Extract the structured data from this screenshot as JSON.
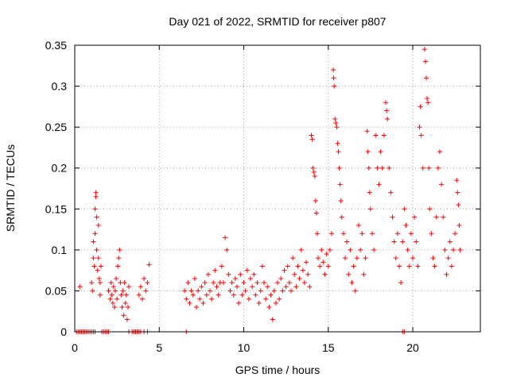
{
  "chart_data": {
    "type": "scatter",
    "title": "Day 021 of 2022, SRMTID for receiver p807",
    "xlabel": "GPS time / hours",
    "ylabel": "SRMTID / TECUs",
    "xlim": [
      0,
      24
    ],
    "ylim": [
      0,
      0.35
    ],
    "xticks": [
      "0",
      "5",
      "10",
      "15",
      "20"
    ],
    "yticks": [
      "0",
      "0.05",
      "0.1",
      "0.15",
      "0.2",
      "0.25",
      "0.3",
      "0.35"
    ],
    "grid": true,
    "marker": "+",
    "series_color": "#ff0000",
    "series": [
      {
        "name": "SRMTID",
        "points": [
          [
            0.1,
            0
          ],
          [
            0.2,
            0
          ],
          [
            0.3,
            0
          ],
          [
            0.4,
            0
          ],
          [
            0.5,
            0
          ],
          [
            0.6,
            0
          ],
          [
            0.7,
            0
          ],
          [
            0.8,
            0
          ],
          [
            0.9,
            0
          ],
          [
            1.0,
            0
          ],
          [
            1.1,
            0
          ],
          [
            1.2,
            0
          ],
          [
            1.6,
            0
          ],
          [
            1.7,
            0
          ],
          [
            1.8,
            0
          ],
          [
            1.9,
            0
          ],
          [
            2.0,
            0
          ],
          [
            3.2,
            0
          ],
          [
            3.4,
            0
          ],
          [
            3.5,
            0
          ],
          [
            3.6,
            0
          ],
          [
            3.7,
            0
          ],
          [
            3.8,
            0
          ],
          [
            3.9,
            0
          ],
          [
            4.1,
            0
          ],
          [
            4.3,
            0
          ],
          [
            6.6,
            0
          ],
          [
            19.4,
            0
          ],
          [
            19.5,
            0
          ],
          [
            0.3,
            0.055
          ],
          [
            1.0,
            0.06
          ],
          [
            1.05,
            0.05
          ],
          [
            1.1,
            0.09
          ],
          [
            1.1,
            0.11
          ],
          [
            1.15,
            0.08
          ],
          [
            1.2,
            0.12
          ],
          [
            1.2,
            0.15
          ],
          [
            1.25,
            0.17
          ],
          [
            1.25,
            0.165
          ],
          [
            1.3,
            0.14
          ],
          [
            1.3,
            0.1
          ],
          [
            1.35,
            0.075
          ],
          [
            1.4,
            0.13
          ],
          [
            1.4,
            0.09
          ],
          [
            1.45,
            0.065
          ],
          [
            1.5,
            0.06
          ],
          [
            1.5,
            0.045
          ],
          [
            1.55,
            0.08
          ],
          [
            2.0,
            0.05
          ],
          [
            2.1,
            0.04
          ],
          [
            2.15,
            0.06
          ],
          [
            2.2,
            0.045
          ],
          [
            2.25,
            0.035
          ],
          [
            2.3,
            0.055
          ],
          [
            2.35,
            0.03
          ],
          [
            2.4,
            0.05
          ],
          [
            2.45,
            0.065
          ],
          [
            2.5,
            0.04
          ],
          [
            2.55,
            0.08
          ],
          [
            2.6,
            0.09
          ],
          [
            2.65,
            0.1
          ],
          [
            2.7,
            0.06
          ],
          [
            2.75,
            0.045
          ],
          [
            2.8,
            0.03
          ],
          [
            2.85,
            0.05
          ],
          [
            2.9,
            0.02
          ],
          [
            2.95,
            0.06
          ],
          [
            3.0,
            0.035
          ],
          [
            3.05,
            0.045
          ],
          [
            3.1,
            0.015
          ],
          [
            3.15,
            0.03
          ],
          [
            3.2,
            0.055
          ],
          [
            3.8,
            0.045
          ],
          [
            3.9,
            0.055
          ],
          [
            4.0,
            0.04
          ],
          [
            4.1,
            0.065
          ],
          [
            4.2,
            0.05
          ],
          [
            4.3,
            0.06
          ],
          [
            4.4,
            0.082
          ],
          [
            6.5,
            0.05
          ],
          [
            6.6,
            0.04
          ],
          [
            6.7,
            0.06
          ],
          [
            6.8,
            0.035
          ],
          [
            6.9,
            0.05
          ],
          [
            7.0,
            0.045
          ],
          [
            7.1,
            0.065
          ],
          [
            7.2,
            0.03
          ],
          [
            7.3,
            0.05
          ],
          [
            7.4,
            0.04
          ],
          [
            7.5,
            0.055
          ],
          [
            7.6,
            0.035
          ],
          [
            7.7,
            0.06
          ],
          [
            7.8,
            0.045
          ],
          [
            7.9,
            0.07
          ],
          [
            8.0,
            0.05
          ],
          [
            8.1,
            0.04
          ],
          [
            8.2,
            0.06
          ],
          [
            8.3,
            0.075
          ],
          [
            8.4,
            0.055
          ],
          [
            8.5,
            0.045
          ],
          [
            8.6,
            0.06
          ],
          [
            8.7,
            0.08
          ],
          [
            8.8,
            0.06
          ],
          [
            8.9,
            0.115
          ],
          [
            9.0,
            0.1
          ],
          [
            9.1,
            0.07
          ],
          [
            9.2,
            0.05
          ],
          [
            9.3,
            0.06
          ],
          [
            9.4,
            0.045
          ],
          [
            9.5,
            0.065
          ],
          [
            9.6,
            0.055
          ],
          [
            9.7,
            0.035
          ],
          [
            9.8,
            0.07
          ],
          [
            9.9,
            0.045
          ],
          [
            10.0,
            0.06
          ],
          [
            10.1,
            0.05
          ],
          [
            10.2,
            0.075
          ],
          [
            10.3,
            0.04
          ],
          [
            10.4,
            0.065
          ],
          [
            10.5,
            0.055
          ],
          [
            10.6,
            0.07
          ],
          [
            10.7,
            0.045
          ],
          [
            10.8,
            0.06
          ],
          [
            10.9,
            0.035
          ],
          [
            11.0,
            0.05
          ],
          [
            11.1,
            0.08
          ],
          [
            11.2,
            0.06
          ],
          [
            11.3,
            0.04
          ],
          [
            11.4,
            0.055
          ],
          [
            11.5,
            0.03
          ],
          [
            11.6,
            0.045
          ],
          [
            11.7,
            0.015
          ],
          [
            11.8,
            0.05
          ],
          [
            11.9,
            0.035
          ],
          [
            12.0,
            0.06
          ],
          [
            12.1,
            0.04
          ],
          [
            12.2,
            0.065
          ],
          [
            12.3,
            0.05
          ],
          [
            12.4,
            0.075
          ],
          [
            12.5,
            0.055
          ],
          [
            12.6,
            0.08
          ],
          [
            12.7,
            0.06
          ],
          [
            12.8,
            0.05
          ],
          [
            12.9,
            0.09
          ],
          [
            13.0,
            0.07
          ],
          [
            13.1,
            0.055
          ],
          [
            13.2,
            0.08
          ],
          [
            13.3,
            0.065
          ],
          [
            13.4,
            0.1
          ],
          [
            13.5,
            0.075
          ],
          [
            13.6,
            0.06
          ],
          [
            13.7,
            0.085
          ],
          [
            13.8,
            0.07
          ],
          [
            13.9,
            0.055
          ],
          [
            14.0,
            0.24
          ],
          [
            14.05,
            0.235
          ],
          [
            14.1,
            0.2
          ],
          [
            14.15,
            0.195
          ],
          [
            14.2,
            0.19
          ],
          [
            14.25,
            0.16
          ],
          [
            14.3,
            0.145
          ],
          [
            14.35,
            0.12
          ],
          [
            14.4,
            0.09
          ],
          [
            14.5,
            0.08
          ],
          [
            14.6,
            0.1
          ],
          [
            14.7,
            0.085
          ],
          [
            14.8,
            0.07
          ],
          [
            14.9,
            0.095
          ],
          [
            15.0,
            0.08
          ],
          [
            15.1,
            0.1
          ],
          [
            15.2,
            0.12
          ],
          [
            15.3,
            0.32
          ],
          [
            15.32,
            0.31
          ],
          [
            15.35,
            0.3
          ],
          [
            15.4,
            0.26
          ],
          [
            15.45,
            0.255
          ],
          [
            15.5,
            0.25
          ],
          [
            15.55,
            0.23
          ],
          [
            15.6,
            0.22
          ],
          [
            15.65,
            0.2
          ],
          [
            15.7,
            0.18
          ],
          [
            15.75,
            0.16
          ],
          [
            15.8,
            0.14
          ],
          [
            15.9,
            0.12
          ],
          [
            16.0,
            0.09
          ],
          [
            16.1,
            0.11
          ],
          [
            16.2,
            0.07
          ],
          [
            16.3,
            0.1
          ],
          [
            16.4,
            0.06
          ],
          [
            16.5,
            0.08
          ],
          [
            16.6,
            0.05
          ],
          [
            16.7,
            0.09
          ],
          [
            16.8,
            0.13
          ],
          [
            16.9,
            0.1
          ],
          [
            17.0,
            0.12
          ],
          [
            17.1,
            0.07
          ],
          [
            17.2,
            0.09
          ],
          [
            17.3,
            0.245
          ],
          [
            17.35,
            0.22
          ],
          [
            17.4,
            0.2
          ],
          [
            17.45,
            0.17
          ],
          [
            17.5,
            0.15
          ],
          [
            17.6,
            0.12
          ],
          [
            17.7,
            0.1
          ],
          [
            17.8,
            0.24
          ],
          [
            17.9,
            0.2
          ],
          [
            18.0,
            0.18
          ],
          [
            18.1,
            0.22
          ],
          [
            18.2,
            0.2
          ],
          [
            18.3,
            0.24
          ],
          [
            18.4,
            0.28
          ],
          [
            18.45,
            0.27
          ],
          [
            18.5,
            0.26
          ],
          [
            18.6,
            0.2
          ],
          [
            18.7,
            0.17
          ],
          [
            18.8,
            0.14
          ],
          [
            18.9,
            0.11
          ],
          [
            19.0,
            0.09
          ],
          [
            19.1,
            0.12
          ],
          [
            19.2,
            0.08
          ],
          [
            19.3,
            0.06
          ],
          [
            19.4,
            0.11
          ],
          [
            19.5,
            0.15
          ],
          [
            19.6,
            0.13
          ],
          [
            19.7,
            0.1
          ],
          [
            19.8,
            0.08
          ],
          [
            19.9,
            0.12
          ],
          [
            20.0,
            0.09
          ],
          [
            20.1,
            0.14
          ],
          [
            20.2,
            0.11
          ],
          [
            20.3,
            0.08
          ],
          [
            20.4,
            0.25
          ],
          [
            20.45,
            0.275
          ],
          [
            20.5,
            0.24
          ],
          [
            20.6,
            0.2
          ],
          [
            20.7,
            0.345
          ],
          [
            20.75,
            0.33
          ],
          [
            20.8,
            0.31
          ],
          [
            20.85,
            0.285
          ],
          [
            20.9,
            0.28
          ],
          [
            20.95,
            0.2
          ],
          [
            21.0,
            0.15
          ],
          [
            21.1,
            0.12
          ],
          [
            21.2,
            0.09
          ],
          [
            21.3,
            0.08
          ],
          [
            21.4,
            0.14
          ],
          [
            21.5,
            0.2
          ],
          [
            21.6,
            0.22
          ],
          [
            21.7,
            0.18
          ],
          [
            21.8,
            0.14
          ],
          [
            21.9,
            0.1
          ],
          [
            22.0,
            0.07
          ],
          [
            22.1,
            0.09
          ],
          [
            22.2,
            0.11
          ],
          [
            22.3,
            0.08
          ],
          [
            22.4,
            0.1
          ],
          [
            22.5,
            0.12
          ],
          [
            22.6,
            0.185
          ],
          [
            22.65,
            0.17
          ],
          [
            22.7,
            0.155
          ],
          [
            22.75,
            0.13
          ],
          [
            22.8,
            0.1
          ]
        ]
      }
    ]
  }
}
